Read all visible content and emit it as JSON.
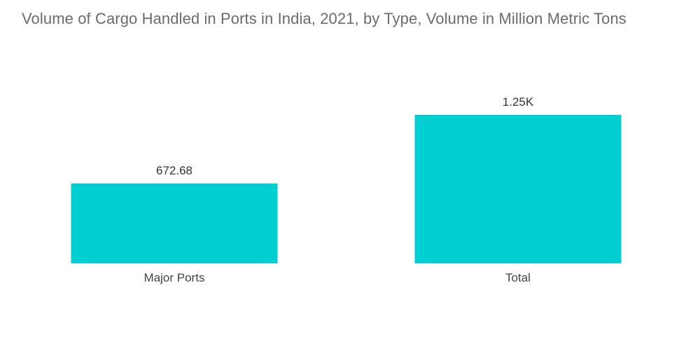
{
  "title": "Volume of Cargo Handled in Ports in India, 2021, by Type, Volume in Million Metric Tons",
  "colors": {
    "bar": "#00CED1",
    "title": "#6b6b6b"
  },
  "chart_data": {
    "type": "bar",
    "title": "Volume of Cargo Handled in Ports in India, 2021, by Type, Volume in Million Metric Tons",
    "xlabel": "",
    "ylabel": "",
    "categories": [
      "Major Ports",
      "Total"
    ],
    "values": [
      672.68,
      1250
    ],
    "data_labels": [
      "672.68",
      "1.25K"
    ],
    "ylim": [
      0,
      1250
    ],
    "grid": false,
    "legend": "none"
  }
}
